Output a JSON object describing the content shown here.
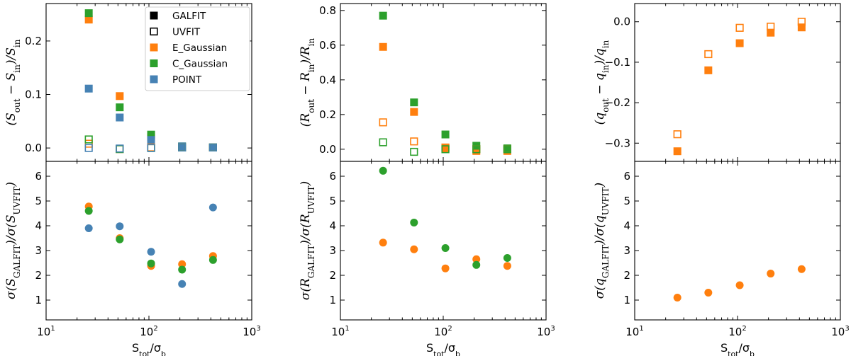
{
  "figure": {
    "xlabel_main": "S",
    "xlabel_sub1": "tot",
    "xlabel_mid": "/σ",
    "xlabel_sub2": "b",
    "xticks": [
      "10",
      "10",
      "10"
    ],
    "xtick_exps": [
      "1",
      "2",
      "3"
    ]
  },
  "legend": [
    {
      "label": "GALFIT",
      "color": "#000000",
      "filled": true
    },
    {
      "label": "UVFIT",
      "color": "#000000",
      "filled": false
    },
    {
      "label": "E_Gaussian",
      "color": "#ff7f0e",
      "filled": true
    },
    {
      "label": "C_Gaussian",
      "color": "#2ca02c",
      "filled": true
    },
    {
      "label": "POINT",
      "color": "#4682b4",
      "filled": true
    }
  ],
  "colors": {
    "E_Gaussian": "#ff7f0e",
    "C_Gaussian": "#2ca02c",
    "POINT": "#4682b4"
  },
  "chart_data": [
    {
      "type": "scatter",
      "panel": "top-left",
      "ylabel_parts": [
        "(S",
        "out",
        " − S",
        "in",
        ")/S",
        "in"
      ],
      "xscale": "log",
      "xlim": [
        10,
        1000
      ],
      "ylim": [
        -0.025,
        0.27
      ],
      "yticks": [
        0.0,
        0.1,
        0.2
      ],
      "ytick_labels": [
        "0.0",
        "0.1",
        "0.2"
      ],
      "x": [
        26,
        52,
        105,
        210,
        420
      ],
      "series": [
        {
          "name": "E_Gaussian",
          "marker": "square",
          "filled": true,
          "values": [
            0.24,
            0.097,
            0.02,
            0.002,
            0.001
          ]
        },
        {
          "name": "C_Gaussian",
          "marker": "square",
          "filled": true,
          "values": [
            0.252,
            0.076,
            0.025,
            0.003,
            0.001
          ]
        },
        {
          "name": "POINT",
          "marker": "square",
          "filled": true,
          "values": [
            0.111,
            0.057,
            0.015,
            0.003,
            0.001
          ]
        },
        {
          "name": "E_Gaussian",
          "marker": "square",
          "filled": false,
          "values": [
            0.008,
            -0.002,
            0.001,
            0.001,
            0.001
          ]
        },
        {
          "name": "C_Gaussian",
          "marker": "square",
          "filled": false,
          "values": [
            0.016,
            -0.002,
            0.0,
            0.001,
            0.001
          ]
        },
        {
          "name": "POINT",
          "marker": "square",
          "filled": false,
          "values": [
            0.0,
            -0.001,
            0.0,
            0.001,
            0.001
          ]
        }
      ]
    },
    {
      "type": "scatter",
      "panel": "top-middle",
      "ylabel_parts": [
        "(R",
        "out",
        " − R",
        "in",
        ")/R",
        "in"
      ],
      "xscale": "log",
      "xlim": [
        10,
        1000
      ],
      "ylim": [
        -0.07,
        0.84
      ],
      "yticks": [
        0.0,
        0.2,
        0.4,
        0.6,
        0.8
      ],
      "ytick_labels": [
        "0.0",
        "0.2",
        "0.4",
        "0.6",
        "0.8"
      ],
      "x": [
        26,
        52,
        105,
        210,
        420
      ],
      "series": [
        {
          "name": "E_Gaussian",
          "marker": "square",
          "filled": true,
          "values": [
            0.59,
            0.215,
            0.005,
            -0.01,
            -0.01
          ]
        },
        {
          "name": "C_Gaussian",
          "marker": "square",
          "filled": true,
          "values": [
            0.77,
            0.27,
            0.085,
            0.02,
            0.005
          ]
        },
        {
          "name": "E_Gaussian",
          "marker": "square",
          "filled": false,
          "values": [
            0.155,
            0.045,
            0.01,
            0.0,
            0.0
          ]
        },
        {
          "name": "C_Gaussian",
          "marker": "square",
          "filled": false,
          "values": [
            0.04,
            -0.015,
            0.0,
            0.0,
            0.0
          ]
        }
      ]
    },
    {
      "type": "scatter",
      "panel": "top-right",
      "ylabel_parts": [
        "(q",
        "out",
        " − q",
        "in",
        ")/q",
        "in"
      ],
      "xscale": "log",
      "xlim": [
        10,
        1000
      ],
      "ylim": [
        -0.345,
        0.045
      ],
      "yticks": [
        0.0,
        -0.1,
        -0.2,
        -0.3
      ],
      "ytick_labels": [
        "0.0",
        "−0.1",
        "−0.2",
        "−0.3"
      ],
      "x": [
        26,
        52,
        105,
        210,
        420
      ],
      "series": [
        {
          "name": "E_Gaussian",
          "marker": "square",
          "filled": true,
          "values": [
            -0.32,
            -0.12,
            -0.053,
            -0.027,
            -0.014
          ]
        },
        {
          "name": "E_Gaussian",
          "marker": "square",
          "filled": false,
          "values": [
            -0.278,
            -0.08,
            -0.015,
            -0.012,
            0.0
          ]
        }
      ]
    },
    {
      "type": "scatter",
      "panel": "bottom-left",
      "ylabel_parts": [
        "σ(S",
        "GALFIT",
        ")/σ(S",
        "UVFIT",
        ")"
      ],
      "xscale": "log",
      "xlim": [
        10,
        1000
      ],
      "ylim": [
        0.2,
        6.6
      ],
      "yticks": [
        1,
        2,
        3,
        4,
        5,
        6
      ],
      "ytick_labels": [
        "1",
        "2",
        "3",
        "4",
        "5",
        "6"
      ],
      "x": [
        26,
        52,
        105,
        210,
        420
      ],
      "series": [
        {
          "name": "E_Gaussian",
          "marker": "circle",
          "filled": true,
          "values": [
            4.78,
            3.5,
            2.38,
            2.45,
            2.78
          ]
        },
        {
          "name": "C_Gaussian",
          "marker": "circle",
          "filled": true,
          "values": [
            4.6,
            3.45,
            2.48,
            2.23,
            2.62
          ]
        },
        {
          "name": "POINT",
          "marker": "circle",
          "filled": true,
          "values": [
            3.9,
            3.98,
            2.95,
            1.65,
            4.74
          ]
        }
      ]
    },
    {
      "type": "scatter",
      "panel": "bottom-middle",
      "ylabel_parts": [
        "σ(R",
        "GALFIT",
        ")/σ(R",
        "UVFIT",
        ")"
      ],
      "xscale": "log",
      "xlim": [
        10,
        1000
      ],
      "ylim": [
        0.2,
        6.6
      ],
      "yticks": [
        1,
        2,
        3,
        4,
        5,
        6
      ],
      "ytick_labels": [
        "1",
        "2",
        "3",
        "4",
        "5",
        "6"
      ],
      "x": [
        26,
        52,
        105,
        210,
        420
      ],
      "series": [
        {
          "name": "E_Gaussian",
          "marker": "circle",
          "filled": true,
          "values": [
            3.32,
            3.05,
            2.28,
            2.65,
            2.38
          ]
        },
        {
          "name": "C_Gaussian",
          "marker": "circle",
          "filled": true,
          "values": [
            6.22,
            4.13,
            3.1,
            2.42,
            2.7
          ]
        }
      ]
    },
    {
      "type": "scatter",
      "panel": "bottom-right",
      "ylabel_parts": [
        "σ(q",
        "GALFIT",
        ")/σ(q",
        "UVFIT",
        ")"
      ],
      "xscale": "log",
      "xlim": [
        10,
        1000
      ],
      "ylim": [
        0.2,
        6.6
      ],
      "yticks": [
        1,
        2,
        3,
        4,
        5,
        6
      ],
      "ytick_labels": [
        "1",
        "2",
        "3",
        "4",
        "5",
        "6"
      ],
      "x": [
        26,
        52,
        105,
        210,
        420
      ],
      "series": [
        {
          "name": "E_Gaussian",
          "marker": "circle",
          "filled": true,
          "values": [
            1.1,
            1.3,
            1.6,
            2.07,
            2.25
          ]
        }
      ]
    }
  ]
}
